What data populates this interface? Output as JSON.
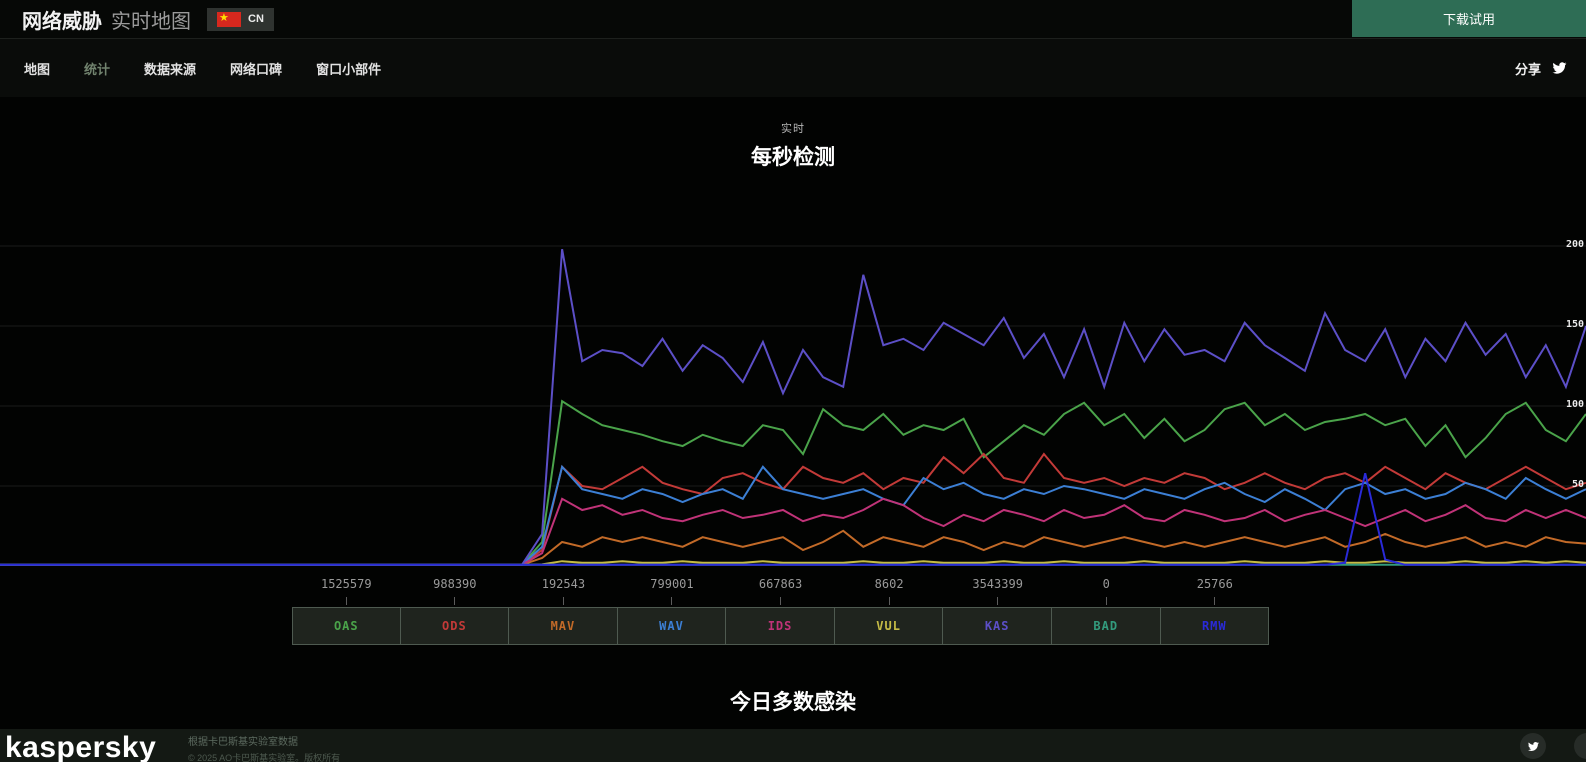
{
  "header": {
    "title_bold": "网络威胁",
    "title_light": "实时地图",
    "country_code": "CN",
    "download_button": "下载试用"
  },
  "nav": {
    "items": [
      {
        "label": "地图",
        "active": false
      },
      {
        "label": "统计",
        "active": true
      },
      {
        "label": "数据来源",
        "active": false
      },
      {
        "label": "网络口碑",
        "active": false
      },
      {
        "label": "窗口小部件",
        "active": false
      }
    ],
    "share_label": "分享"
  },
  "chart_section": {
    "subtitle": "实时",
    "title": "每秒检测"
  },
  "chart_data": {
    "type": "line",
    "title": "每秒检测",
    "subtitle": "实时",
    "xlabel": "",
    "ylabel": "",
    "ylim": [
      0,
      237.5
    ],
    "yticks": [
      50,
      100,
      150,
      200
    ],
    "grid": true,
    "legend_position": "bottom",
    "series": [
      {
        "code": "OAS",
        "today_total": "1525579",
        "color": "#4aa34a",
        "values": [
          0,
          0,
          0,
          0,
          0,
          0,
          0,
          0,
          0,
          0,
          0,
          0,
          0,
          0,
          0,
          0,
          0,
          0,
          0,
          0,
          0,
          0,
          0,
          0,
          0,
          0,
          0,
          15,
          103,
          95,
          88,
          85,
          82,
          78,
          75,
          82,
          78,
          75,
          88,
          85,
          70,
          98,
          88,
          85,
          95,
          82,
          88,
          85,
          92,
          68,
          78,
          88,
          82,
          95,
          102,
          88,
          95,
          80,
          92,
          78,
          85,
          98,
          102,
          88,
          95,
          85,
          90,
          92,
          95,
          88,
          92,
          75,
          88,
          68,
          80,
          95,
          102,
          85,
          78,
          95
        ]
      },
      {
        "code": "ODS",
        "today_total": "988390",
        "color": "#c23a38",
        "values": [
          0,
          0,
          0,
          0,
          0,
          0,
          0,
          0,
          0,
          0,
          0,
          0,
          0,
          0,
          0,
          0,
          0,
          0,
          0,
          0,
          0,
          0,
          0,
          0,
          0,
          0,
          0,
          10,
          62,
          50,
          48,
          55,
          62,
          52,
          48,
          45,
          55,
          58,
          52,
          48,
          62,
          55,
          52,
          58,
          48,
          55,
          52,
          68,
          58,
          70,
          55,
          52,
          70,
          55,
          52,
          55,
          50,
          55,
          52,
          58,
          55,
          48,
          52,
          58,
          52,
          48,
          55,
          58,
          52,
          62,
          55,
          48,
          58,
          52,
          48,
          55,
          62,
          55,
          48,
          52
        ]
      },
      {
        "code": "MAV",
        "today_total": "192543",
        "color": "#c26a28",
        "values": [
          0,
          0,
          0,
          0,
          0,
          0,
          0,
          0,
          0,
          0,
          0,
          0,
          0,
          0,
          0,
          0,
          0,
          0,
          0,
          0,
          0,
          0,
          0,
          0,
          0,
          0,
          0,
          5,
          15,
          12,
          18,
          15,
          18,
          15,
          12,
          18,
          15,
          12,
          15,
          18,
          10,
          15,
          22,
          12,
          18,
          15,
          12,
          18,
          15,
          10,
          15,
          12,
          18,
          15,
          12,
          15,
          18,
          15,
          12,
          15,
          12,
          15,
          18,
          15,
          12,
          15,
          18,
          12,
          15,
          20,
          15,
          12,
          15,
          18,
          12,
          15,
          12,
          18,
          15,
          14
        ]
      },
      {
        "code": "WAV",
        "today_total": "799001",
        "color": "#3c7fd4",
        "values": [
          0,
          0,
          0,
          0,
          0,
          0,
          0,
          0,
          0,
          0,
          0,
          0,
          0,
          0,
          0,
          0,
          0,
          0,
          0,
          0,
          0,
          0,
          0,
          0,
          0,
          0,
          0,
          12,
          62,
          48,
          45,
          42,
          48,
          45,
          40,
          45,
          48,
          42,
          62,
          48,
          45,
          42,
          45,
          48,
          42,
          38,
          55,
          48,
          52,
          45,
          42,
          48,
          45,
          50,
          48,
          45,
          42,
          48,
          45,
          42,
          48,
          52,
          45,
          40,
          48,
          42,
          35,
          48,
          52,
          45,
          48,
          42,
          45,
          52,
          48,
          42,
          55,
          48,
          42,
          48
        ]
      },
      {
        "code": "IDS",
        "today_total": "667863",
        "color": "#c03378",
        "values": [
          0,
          0,
          0,
          0,
          0,
          0,
          0,
          0,
          0,
          0,
          0,
          0,
          0,
          0,
          0,
          0,
          0,
          0,
          0,
          0,
          0,
          0,
          0,
          0,
          0,
          0,
          0,
          8,
          42,
          35,
          38,
          32,
          35,
          30,
          28,
          32,
          35,
          30,
          32,
          35,
          28,
          32,
          30,
          35,
          42,
          38,
          30,
          25,
          32,
          28,
          35,
          32,
          28,
          35,
          30,
          32,
          38,
          30,
          28,
          35,
          32,
          28,
          30,
          35,
          28,
          32,
          35,
          30,
          25,
          30,
          35,
          28,
          32,
          38,
          30,
          28,
          35,
          30,
          35,
          30
        ]
      },
      {
        "code": "VUL",
        "today_total": "8602",
        "color": "#c6bc46",
        "values": [
          0,
          0,
          0,
          0,
          0,
          0,
          0,
          0,
          0,
          0,
          0,
          0,
          0,
          0,
          0,
          0,
          0,
          0,
          0,
          0,
          0,
          0,
          0,
          0,
          0,
          0,
          0,
          1,
          3,
          2,
          2,
          3,
          2,
          2,
          3,
          2,
          2,
          2,
          3,
          2,
          2,
          2,
          2,
          3,
          2,
          2,
          3,
          2,
          2,
          2,
          3,
          2,
          2,
          3,
          2,
          2,
          2,
          3,
          2,
          2,
          2,
          2,
          3,
          2,
          2,
          2,
          3,
          2,
          2,
          3,
          2,
          2,
          2,
          3,
          2,
          2,
          3,
          2,
          3,
          2
        ]
      },
      {
        "code": "KAS",
        "today_total": "3543399",
        "color": "#5c4fc7",
        "values": [
          0,
          0,
          0,
          0,
          0,
          0,
          0,
          0,
          0,
          0,
          0,
          0,
          0,
          0,
          0,
          0,
          0,
          0,
          0,
          0,
          0,
          0,
          0,
          0,
          0,
          0,
          0,
          20,
          198,
          128,
          135,
          133,
          125,
          142,
          122,
          138,
          130,
          115,
          140,
          108,
          135,
          118,
          112,
          182,
          138,
          142,
          135,
          152,
          145,
          138,
          155,
          130,
          145,
          118,
          148,
          112,
          152,
          128,
          148,
          132,
          135,
          128,
          152,
          138,
          130,
          122,
          158,
          135,
          128,
          148,
          118,
          142,
          128,
          152,
          132,
          145,
          118,
          138,
          112,
          150
        ]
      },
      {
        "code": "BAD",
        "today_total": "0",
        "color": "#339b7d",
        "values": [
          0,
          0,
          0,
          0,
          0,
          0,
          0,
          0,
          0,
          0,
          0,
          0,
          0,
          0,
          0,
          0,
          0,
          0,
          0,
          0,
          0,
          0,
          0,
          0,
          0,
          0,
          0,
          0,
          0,
          0,
          0,
          0,
          0,
          0,
          0,
          0,
          0,
          0,
          0,
          0,
          0,
          0,
          0,
          0,
          0,
          0,
          0,
          0,
          0,
          0,
          0,
          0,
          0,
          0,
          0,
          0,
          0,
          0,
          0,
          0,
          0,
          0,
          0,
          0,
          0,
          0,
          0,
          0,
          0,
          0,
          0,
          0,
          0,
          0,
          0,
          0,
          0,
          0,
          0,
          0
        ]
      },
      {
        "code": "RMW",
        "today_total": "25766",
        "color": "#2a2ad8",
        "values": [
          0,
          0,
          0,
          0,
          0,
          0,
          0,
          0,
          0,
          0,
          0,
          0,
          0,
          0,
          0,
          0,
          0,
          0,
          0,
          0,
          0,
          0,
          0,
          0,
          0,
          0,
          0,
          0,
          0,
          0,
          0,
          0,
          0,
          0,
          0,
          0,
          0,
          0,
          0,
          0,
          0,
          0,
          0,
          0,
          0,
          0,
          0,
          0,
          0,
          0,
          0,
          0,
          0,
          0,
          0,
          0,
          0,
          0,
          0,
          0,
          0,
          0,
          0,
          0,
          0,
          0,
          0,
          2,
          58,
          4,
          0,
          0,
          0,
          0,
          0,
          0,
          0,
          0,
          0,
          0
        ]
      }
    ]
  },
  "section2": {
    "title": "今日多数感染"
  },
  "footer": {
    "logo": "kaspersky",
    "line1": "根据卡巴斯基实验室数据",
    "line2": "© 2025 AO卡巴斯基实验室。版权所有"
  }
}
